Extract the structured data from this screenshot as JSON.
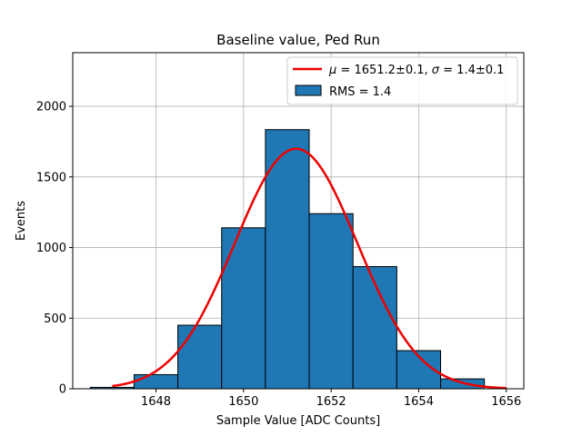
{
  "chart_data": {
    "type": "bar",
    "title": "Baseline value, Ped Run",
    "xlabel": "Sample Value [ADC Counts]",
    "ylabel": "Events",
    "xlim": [
      1646.1,
      1656.4
    ],
    "ylim": [
      0,
      2380
    ],
    "grid": true,
    "legend_position": "top-right",
    "x_ticks": [
      1648,
      1650,
      1652,
      1654,
      1656
    ],
    "x_tick_labels": [
      "1648",
      "1650",
      "1652",
      "1654",
      "1656"
    ],
    "y_ticks": [
      0,
      500,
      1000,
      1500,
      2000
    ],
    "y_tick_labels": [
      "0",
      "500",
      "1000",
      "1500",
      "2000"
    ],
    "histogram": {
      "name": "RMS = 1.4",
      "color": "#1f77b4",
      "edge_color": "#000000",
      "bins": [
        {
          "start": 1646.5,
          "end": 1647.5,
          "value": 10
        },
        {
          "start": 1647.5,
          "end": 1648.5,
          "value": 100
        },
        {
          "start": 1648.5,
          "end": 1649.5,
          "value": 450
        },
        {
          "start": 1649.5,
          "end": 1650.5,
          "value": 1140
        },
        {
          "start": 1650.5,
          "end": 1651.5,
          "value": 1835
        },
        {
          "start": 1651.5,
          "end": 1652.5,
          "value": 1240
        },
        {
          "start": 1652.5,
          "end": 1653.5,
          "value": 865
        },
        {
          "start": 1653.5,
          "end": 1654.5,
          "value": 270
        },
        {
          "start": 1654.5,
          "end": 1655.5,
          "value": 70
        }
      ]
    },
    "fit": {
      "name_prefix_symbol": "μ",
      "name_mu_value": " = 1651.2±0.1, ",
      "name_sigma_symbol": "σ",
      "name_sigma_value": " = 1.4±0.1",
      "mu": 1651.2,
      "sigma": 1.4,
      "amplitude": 1700,
      "x_range": [
        1647,
        1656
      ],
      "color": "#ee0000"
    }
  }
}
